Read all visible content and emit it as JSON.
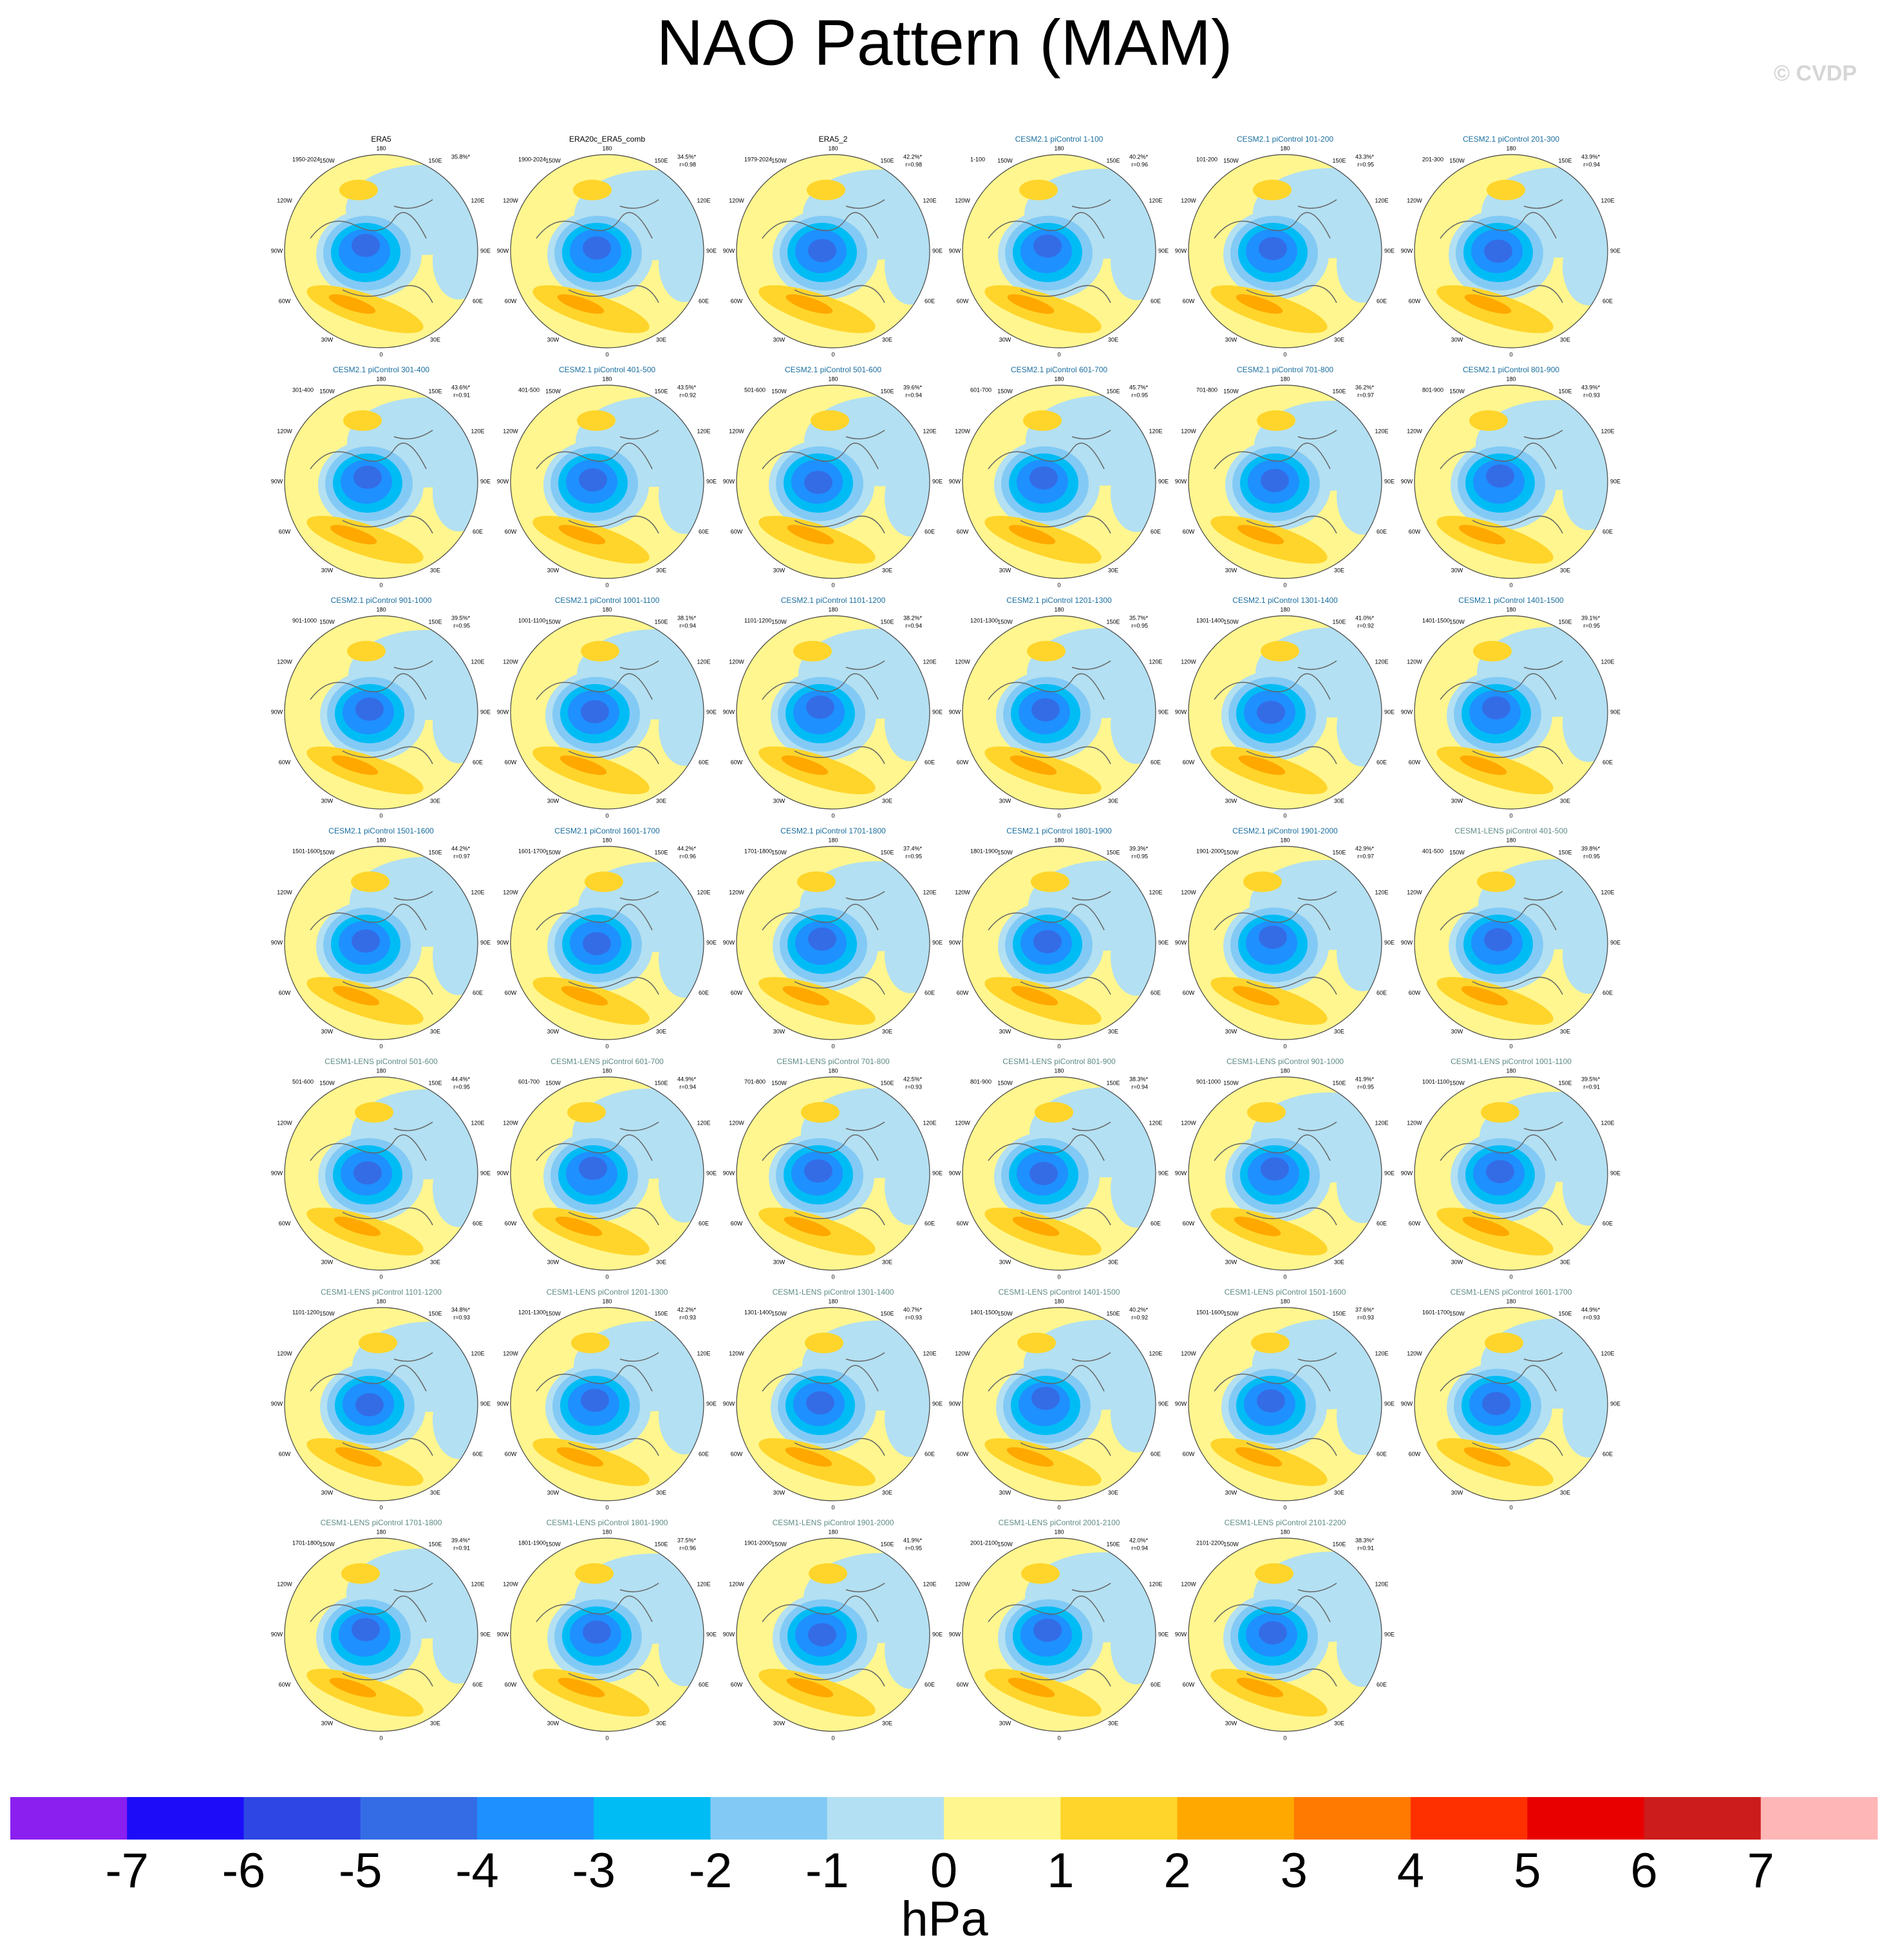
{
  "title": "NAO Pattern (MAM)",
  "copyright": "© CVDP",
  "map_labels": {
    "top": "180",
    "upper_left": "150W",
    "upper_right": "150E",
    "mid_upper_left": "120W",
    "mid_upper_right": "120E",
    "left": "90W",
    "right": "90E",
    "mid_lower_left": "60W",
    "mid_lower_right": "60E",
    "lower_left": "30W",
    "lower_right": "30E",
    "bottom": "0"
  },
  "panels": [
    {
      "title": "ERA5",
      "title_color": "#000000",
      "period": "1950-2024",
      "percent": "35.8%*"
    },
    {
      "title": "ERA20c_ERA5_comb",
      "title_color": "#000000",
      "period": "1900-2024",
      "percent": "34.5%*",
      "r": "r=0.98"
    },
    {
      "title": "ERA5_2",
      "title_color": "#000000",
      "period": "1979-2024",
      "percent": "42.2%*",
      "r": "r=0.98"
    },
    {
      "title": "CESM2.1 piControl 1-100",
      "title_color": "#1a6e9e",
      "period": "1-100",
      "percent": "40.2%*",
      "r": "r=0.96"
    },
    {
      "title": "CESM2.1 piControl 101-200",
      "title_color": "#1a6e9e",
      "period": "101-200",
      "percent": "43.3%*",
      "r": "r=0.95"
    },
    {
      "title": "CESM2.1 piControl 201-300",
      "title_color": "#1a6e9e",
      "period": "201-300",
      "percent": "43.9%*",
      "r": "r=0.94"
    },
    {
      "title": "CESM2.1 piControl 301-400",
      "title_color": "#1a6e9e",
      "period": "301-400",
      "percent": "43.6%*",
      "r": "r=0.91"
    },
    {
      "title": "CESM2.1 piControl 401-500",
      "title_color": "#1a6e9e",
      "period": "401-500",
      "percent": "43.5%*",
      "r": "r=0.92"
    },
    {
      "title": "CESM2.1 piControl 501-600",
      "title_color": "#1a6e9e",
      "period": "501-600",
      "percent": "39.6%*",
      "r": "r=0.94"
    },
    {
      "title": "CESM2.1 piControl 601-700",
      "title_color": "#1a6e9e",
      "period": "601-700",
      "percent": "45.7%*",
      "r": "r=0.95"
    },
    {
      "title": "CESM2.1 piControl 701-800",
      "title_color": "#1a6e9e",
      "period": "701-800",
      "percent": "36.2%*",
      "r": "r=0.97"
    },
    {
      "title": "CESM2.1 piControl 801-900",
      "title_color": "#1a6e9e",
      "period": "801-900",
      "percent": "43.9%*",
      "r": "r=0.93"
    },
    {
      "title": "CESM2.1 piControl 901-1000",
      "title_color": "#1a6e9e",
      "period": "901-1000",
      "percent": "39.5%*",
      "r": "r=0.95"
    },
    {
      "title": "CESM2.1 piControl 1001-1100",
      "title_color": "#1a6e9e",
      "period": "1001-1100",
      "percent": "38.1%*",
      "r": "r=0.94"
    },
    {
      "title": "CESM2.1 piControl 1101-1200",
      "title_color": "#1a6e9e",
      "period": "1101-1200",
      "percent": "38.2%*",
      "r": "r=0.94"
    },
    {
      "title": "CESM2.1 piControl 1201-1300",
      "title_color": "#1a6e9e",
      "period": "1201-1300",
      "percent": "35.7%*",
      "r": "r=0.95"
    },
    {
      "title": "CESM2.1 piControl 1301-1400",
      "title_color": "#1a6e9e",
      "period": "1301-1400",
      "percent": "41.0%*",
      "r": "r=0.92"
    },
    {
      "title": "CESM2.1 piControl 1401-1500",
      "title_color": "#1a6e9e",
      "period": "1401-1500",
      "percent": "39.1%*",
      "r": "r=0.95"
    },
    {
      "title": "CESM2.1 piControl 1501-1600",
      "title_color": "#1a6e9e",
      "period": "1501-1600",
      "percent": "44.2%*",
      "r": "r=0.97"
    },
    {
      "title": "CESM2.1 piControl 1601-1700",
      "title_color": "#1a6e9e",
      "period": "1601-1700",
      "percent": "44.2%*",
      "r": "r=0.96"
    },
    {
      "title": "CESM2.1 piControl 1701-1800",
      "title_color": "#1a6e9e",
      "period": "1701-1800",
      "percent": "37.4%*",
      "r": "r=0.95"
    },
    {
      "title": "CESM2.1 piControl 1801-1900",
      "title_color": "#1a6e9e",
      "period": "1801-1900",
      "percent": "39.3%*",
      "r": "r=0.95"
    },
    {
      "title": "CESM2.1 piControl 1901-2000",
      "title_color": "#1a6e9e",
      "period": "1901-2000",
      "percent": "42.9%*",
      "r": "r=0.97"
    },
    {
      "title": "CESM1-LENS piControl 401-500",
      "title_color": "#5f8c86",
      "period": "401-500",
      "percent": "39.8%*",
      "r": "r=0.95"
    },
    {
      "title": "CESM1-LENS piControl 501-600",
      "title_color": "#5f8c86",
      "period": "501-600",
      "percent": "44.4%*",
      "r": "r=0.95"
    },
    {
      "title": "CESM1-LENS piControl 601-700",
      "title_color": "#5f8c86",
      "period": "601-700",
      "percent": "44.9%*",
      "r": "r=0.94"
    },
    {
      "title": "CESM1-LENS piControl 701-800",
      "title_color": "#5f8c86",
      "period": "701-800",
      "percent": "42.5%*",
      "r": "r=0.93"
    },
    {
      "title": "CESM1-LENS piControl 801-900",
      "title_color": "#5f8c86",
      "period": "801-900",
      "percent": "38.3%*",
      "r": "r=0.94"
    },
    {
      "title": "CESM1-LENS piControl 901-1000",
      "title_color": "#5f8c86",
      "period": "901-1000",
      "percent": "41.9%*",
      "r": "r=0.95"
    },
    {
      "title": "CESM1-LENS piControl 1001-1100",
      "title_color": "#5f8c86",
      "period": "1001-1100",
      "percent": "39.5%*",
      "r": "r=0.91"
    },
    {
      "title": "CESM1-LENS piControl 1101-1200",
      "title_color": "#5f8c86",
      "period": "1101-1200",
      "percent": "34.8%*",
      "r": "r=0.93"
    },
    {
      "title": "CESM1-LENS piControl 1201-1300",
      "title_color": "#5f8c86",
      "period": "1201-1300",
      "percent": "42.2%*",
      "r": "r=0.93"
    },
    {
      "title": "CESM1-LENS piControl 1301-1400",
      "title_color": "#5f8c86",
      "period": "1301-1400",
      "percent": "40.7%*",
      "r": "r=0.93"
    },
    {
      "title": "CESM1-LENS piControl 1401-1500",
      "title_color": "#5f8c86",
      "period": "1401-1500",
      "percent": "40.2%*",
      "r": "r=0.92"
    },
    {
      "title": "CESM1-LENS piControl 1501-1600",
      "title_color": "#5f8c86",
      "period": "1501-1600",
      "percent": "37.6%*",
      "r": "r=0.93"
    },
    {
      "title": "CESM1-LENS piControl 1601-1700",
      "title_color": "#5f8c86",
      "period": "1601-1700",
      "percent": "44.9%*",
      "r": "r=0.93"
    },
    {
      "title": "CESM1-LENS piControl 1701-1800",
      "title_color": "#5f8c86",
      "period": "1701-1800",
      "percent": "39.4%*",
      "r": "r=0.91"
    },
    {
      "title": "CESM1-LENS piControl 1801-1900",
      "title_color": "#5f8c86",
      "period": "1801-1900",
      "percent": "37.5%*",
      "r": "r=0.96"
    },
    {
      "title": "CESM1-LENS piControl 1901-2000",
      "title_color": "#5f8c86",
      "period": "1901-2000",
      "percent": "41.9%*",
      "r": "r=0.95"
    },
    {
      "title": "CESM1-LENS piControl 2001-2100",
      "title_color": "#5f8c86",
      "period": "2001-2100",
      "percent": "42.0%*",
      "r": "r=0.94"
    },
    {
      "title": "CESM1-LENS piControl 2101-2200",
      "title_color": "#5f8c86",
      "period": "2101-2200",
      "percent": "38.3%*",
      "r": "r=0.91"
    }
  ],
  "colorbar": {
    "label": "hPa",
    "ticks": [
      -7,
      -6,
      -5,
      -4,
      -3,
      -2,
      -1,
      0,
      1,
      2,
      3,
      4,
      5,
      6,
      7
    ],
    "colors": [
      "#8a1ff0",
      "#1c0cf8",
      "#2d46e4",
      "#346ce6",
      "#1e90ff",
      "#00bcf5",
      "#82caf5",
      "#b3e0f2",
      "#fff68f",
      "#ffd52b",
      "#ffa800",
      "#ff7a00",
      "#ff3000",
      "#e80000",
      "#cc1c1c",
      "#ffb6b6"
    ]
  }
}
